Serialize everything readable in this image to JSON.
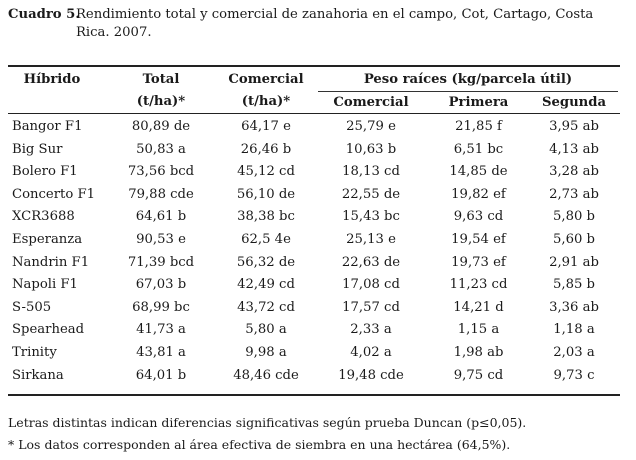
{
  "caption": {
    "label": "Cuadro 5.",
    "text": "Rendimiento total y comercial de zanahoria en el campo, Cot, Cartago, Costa Rica. 2007."
  },
  "headers": {
    "hibrido": "Híbrido",
    "total": "Total",
    "total_unit": "(t/ha)*",
    "comercial": "Comercial",
    "comercial_unit": "(t/ha)*",
    "peso": "Peso raíces (kg/parcela útil)",
    "peso_comercial": "Comercial",
    "peso_primera": "Primera",
    "peso_segunda": "Segunda"
  },
  "rows": [
    {
      "hibrido": "Bangor F1",
      "total": "80,89 de",
      "comercial": "64,17 e",
      "p_comercial": "25,79 e",
      "p_primera": "21,85 f",
      "p_segunda": "3,95 ab"
    },
    {
      "hibrido": "Big Sur",
      "total": "50,83 a",
      "comercial": "26,46 b",
      "p_comercial": "10,63 b",
      "p_primera": "6,51 bc",
      "p_segunda": "4,13 ab"
    },
    {
      "hibrido": "Bolero F1",
      "total": "73,56 bcd",
      "comercial": "45,12 cd",
      "p_comercial": "18,13 cd",
      "p_primera": "14,85 de",
      "p_segunda": "3,28 ab"
    },
    {
      "hibrido": "Concerto F1",
      "total": "79,88 cde",
      "comercial": "56,10 de",
      "p_comercial": "22,55 de",
      "p_primera": "19,82 ef",
      "p_segunda": "2,73 ab"
    },
    {
      "hibrido": "XCR3688",
      "total": "64,61 b",
      "comercial": "38,38 bc",
      "p_comercial": "15,43 bc",
      "p_primera": "9,63 cd",
      "p_segunda": "5,80 b"
    },
    {
      "hibrido": "Esperanza",
      "total": "90,53 e",
      "comercial": "62,5 4e",
      "p_comercial": "25,13 e",
      "p_primera": "19,54 ef",
      "p_segunda": "5,60 b"
    },
    {
      "hibrido": "Nandrin F1",
      "total": "71,39 bcd",
      "comercial": "56,32 de",
      "p_comercial": "22,63 de",
      "p_primera": "19,73 ef",
      "p_segunda": "2,91 ab"
    },
    {
      "hibrido": "Napoli F1",
      "total": "67,03 b",
      "comercial": "42,49 cd",
      "p_comercial": "17,08 cd",
      "p_primera": "11,23 cd",
      "p_segunda": "5,85 b"
    },
    {
      "hibrido": "S-505",
      "total": "68,99 bc",
      "comercial": "43,72 cd",
      "p_comercial": "17,57 cd",
      "p_primera": "14,21 d",
      "p_segunda": "3,36 ab"
    },
    {
      "hibrido": "Spearhead",
      "total": "41,73 a",
      "comercial": "5,80 a",
      "p_comercial": "2,33 a",
      "p_primera": "1,15 a",
      "p_segunda": "1,18 a"
    },
    {
      "hibrido": "Trinity",
      "total": "43,81 a",
      "comercial": "9,98 a",
      "p_comercial": "4,02 a",
      "p_primera": "1,98 ab",
      "p_segunda": "2,03 a"
    },
    {
      "hibrido": "Sirkana",
      "total": "64,01 b",
      "comercial": "48,46 cde",
      "p_comercial": "19,48 cde",
      "p_primera": "9,75 cd",
      "p_segunda": "9,73 c"
    }
  ],
  "notes": {
    "note1": "Letras distintas indican diferencias significativas según prueba Duncan (p≤0,05).",
    "note2": "* Los datos corresponden al área efectiva de siembra en una hectárea (64,5%)."
  }
}
